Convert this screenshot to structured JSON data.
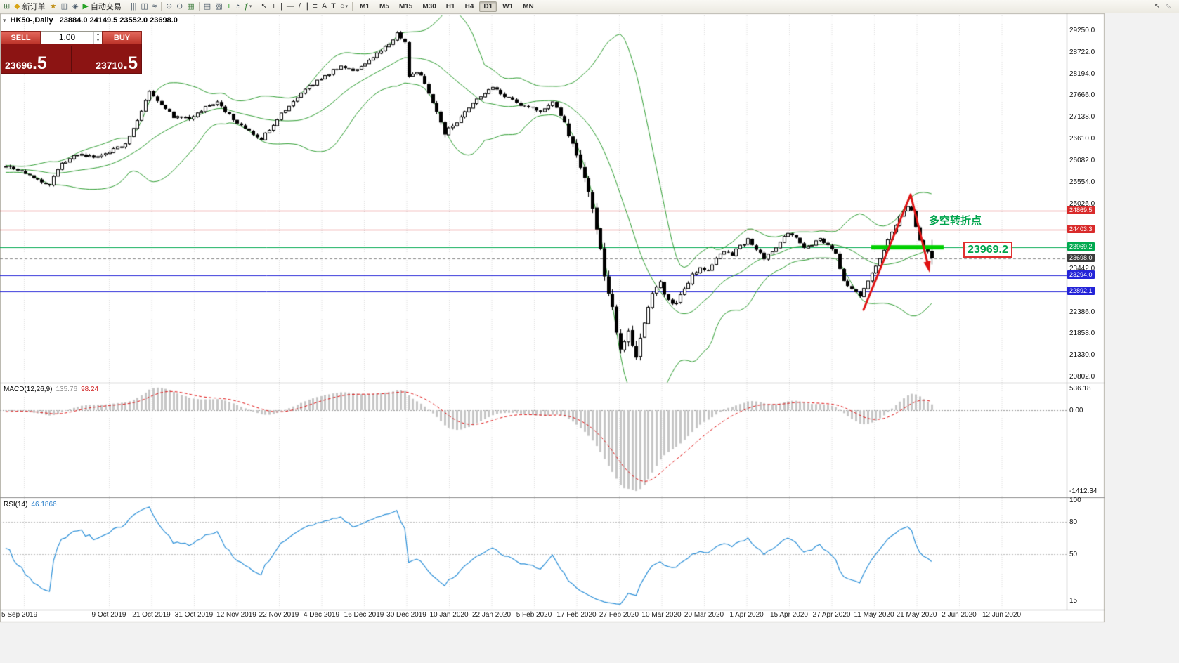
{
  "toolbar": {
    "items": [
      {
        "name": "new-chart-button",
        "glyph": "⊞",
        "color": "#3b6e3b"
      },
      {
        "name": "new-order-button",
        "glyph": "◆",
        "color": "#d8a517",
        "label": "新订单"
      },
      {
        "name": "metaeditor-button",
        "glyph": "★",
        "color": "#c09018"
      },
      {
        "name": "market-watch-button",
        "glyph": "▥",
        "color": "#4a5a6a"
      },
      {
        "name": "data-window-button",
        "glyph": "◈",
        "color": "#4a5a6a"
      },
      {
        "name": "autotrade-button",
        "glyph": "▶",
        "color": "#27a327",
        "label": "自动交易"
      },
      {
        "sep": true
      },
      {
        "name": "bar-chart-button",
        "glyph": "|||",
        "color": "#3f4f5f"
      },
      {
        "name": "candle-chart-button",
        "glyph": "◫",
        "color": "#3f4f5f"
      },
      {
        "name": "line-chart-button",
        "glyph": "≈",
        "color": "#3f4f5f"
      },
      {
        "sep": true
      },
      {
        "name": "zoom-in-button",
        "glyph": "⊕",
        "color": "#3f4f5f"
      },
      {
        "name": "zoom-out-button",
        "glyph": "⊖",
        "color": "#3f4f5f"
      },
      {
        "name": "tile-windows-button",
        "glyph": "▦",
        "color": "#3b7a3b"
      },
      {
        "sep": true
      },
      {
        "name": "arrange-windows-button",
        "glyph": "▤",
        "color": "#3f4f5f"
      },
      {
        "name": "cascade-windows-button",
        "glyph": "▧",
        "color": "#3f4f5f"
      },
      {
        "name": "new-window-button",
        "glyph": "+",
        "color": "#1f9a1f"
      },
      {
        "name": "time-periods-button",
        "glyph": "◔",
        "color": "#3f4f5f"
      },
      {
        "name": "indicators-button",
        "glyph": "ƒ",
        "color": "#2c7a2c",
        "caret": true
      },
      {
        "sep": true
      },
      {
        "name": "cursor-tool-button",
        "glyph": "↖",
        "color": "#333333"
      },
      {
        "name": "crosshair-tool-button",
        "glyph": "+",
        "color": "#333333"
      },
      {
        "name": "vertical-line-tool-button",
        "glyph": "|",
        "color": "#333333"
      },
      {
        "name": "horizontal-line-tool-button",
        "glyph": "—",
        "color": "#333333"
      },
      {
        "name": "trendline-tool-button",
        "glyph": "/",
        "color": "#333333"
      },
      {
        "name": "channel-tool-button",
        "glyph": "∥",
        "color": "#333333"
      },
      {
        "name": "fibonacci-tool-button",
        "glyph": "≡",
        "color": "#333333"
      },
      {
        "name": "text-tool-button",
        "glyph": "A",
        "color": "#333333"
      },
      {
        "name": "label-tool-button",
        "glyph": "T",
        "color": "#333333"
      },
      {
        "name": "shapes-tool-button",
        "glyph": "○",
        "color": "#333333",
        "caret": true
      },
      {
        "sep": true
      }
    ],
    "timeframes": [
      "M1",
      "M5",
      "M15",
      "M30",
      "H1",
      "H4",
      "D1",
      "W1",
      "MN"
    ],
    "active_timeframe": "D1",
    "right_items": [
      {
        "name": "cursor-icon",
        "glyph": "↖",
        "color": "#555555"
      },
      {
        "name": "hand-cursor-icon",
        "glyph": "⇖",
        "color": "#999999"
      }
    ]
  },
  "trade_panel": {
    "sell_label": "SELL",
    "buy_label": "BUY",
    "volume": "1.00",
    "bid": {
      "main": "23696",
      "pip": ".5"
    },
    "ask": {
      "main": "23710",
      "pip": ".5"
    }
  },
  "chart": {
    "symbol": "HK50-,Daily",
    "ohlc": "23884.0 24149.5 23552.0 23698.0"
  },
  "chart_data": {
    "type": "candlestick",
    "symbol": "HK50-",
    "timeframe": "Daily",
    "today": {
      "open": 23884.0,
      "high": 24149.5,
      "low": 23552.0,
      "close": 23698.0
    },
    "current_price": {
      "price": 23698.0,
      "label": "23698.0",
      "color": "#3c3c3c"
    },
    "levels": [
      {
        "price": 24869.5,
        "label": "24869.5",
        "color": "#d92b2b"
      },
      {
        "price": 24403.3,
        "label": "24403.3",
        "color": "#d92b2b"
      },
      {
        "price": 23969.2,
        "label": "23969.2",
        "color": "#00a94f",
        "highlight": true
      },
      {
        "price": 23294.0,
        "label": "23294.0",
        "color": "#2424d8"
      },
      {
        "price": 22892.1,
        "label": "22892.1",
        "color": "#2424d8"
      }
    ],
    "level_label": "23969.2",
    "annotation_text": "多空转折点",
    "annotation_color": "#00a44c",
    "y_ticks": [
      29250,
      28722,
      28194,
      27666,
      27138,
      26610,
      26082,
      25554,
      25026,
      23442,
      22386,
      21858,
      21330,
      20802
    ],
    "bollinger": {
      "period": 20,
      "deviation": 2
    },
    "macd": {
      "name": "MACD(12,26,9)",
      "value": "135.76",
      "signal_value": "98.24",
      "axis_max": "536.18",
      "axis_zero": "0.00",
      "axis_min": "-1412.34"
    },
    "rsi": {
      "name": "RSI(14)",
      "value": "46.1866",
      "axis_top": "100",
      "axis_levels": [
        "80",
        "50"
      ],
      "axis_bottom": "15",
      "levels": [
        80,
        50
      ]
    },
    "price_anchors": [
      [
        0,
        25950
      ],
      [
        4,
        25800
      ],
      [
        8,
        25600
      ],
      [
        11,
        25500
      ],
      [
        14,
        26000
      ],
      [
        18,
        26250
      ],
      [
        22,
        26150
      ],
      [
        26,
        26300
      ],
      [
        30,
        26500
      ],
      [
        33,
        27050
      ],
      [
        36,
        27750
      ],
      [
        39,
        27450
      ],
      [
        42,
        27150
      ],
      [
        46,
        27100
      ],
      [
        50,
        27400
      ],
      [
        53,
        27500
      ],
      [
        57,
        27100
      ],
      [
        61,
        26800
      ],
      [
        64,
        26600
      ],
      [
        68,
        27100
      ],
      [
        72,
        27550
      ],
      [
        76,
        27900
      ],
      [
        80,
        28150
      ],
      [
        84,
        28400
      ],
      [
        87,
        28250
      ],
      [
        90,
        28450
      ],
      [
        93,
        28700
      ],
      [
        96,
        28950
      ],
      [
        98,
        29200
      ],
      [
        100,
        28950
      ],
      [
        101,
        28150
      ],
      [
        104,
        28200
      ],
      [
        107,
        27500
      ],
      [
        110,
        26750
      ],
      [
        113,
        27000
      ],
      [
        116,
        27400
      ],
      [
        119,
        27650
      ],
      [
        122,
        27850
      ],
      [
        126,
        27600
      ],
      [
        130,
        27400
      ],
      [
        134,
        27300
      ],
      [
        137,
        27550
      ],
      [
        140,
        27000
      ],
      [
        142,
        26400
      ],
      [
        144,
        25850
      ],
      [
        146,
        25300
      ],
      [
        148,
        24400
      ],
      [
        150,
        23300
      ],
      [
        152,
        22400
      ],
      [
        154,
        21500
      ],
      [
        156,
        21900
      ],
      [
        158,
        21300
      ],
      [
        160,
        22200
      ],
      [
        162,
        22900
      ],
      [
        164,
        23100
      ],
      [
        166,
        22650
      ],
      [
        168,
        22600
      ],
      [
        170,
        23000
      ],
      [
        172,
        23300
      ],
      [
        174,
        23450
      ],
      [
        176,
        23400
      ],
      [
        178,
        23700
      ],
      [
        180,
        23900
      ],
      [
        182,
        23800
      ],
      [
        184,
        24000
      ],
      [
        186,
        24150
      ],
      [
        188,
        23900
      ],
      [
        190,
        23700
      ],
      [
        192,
        23850
      ],
      [
        194,
        24100
      ],
      [
        196,
        24300
      ],
      [
        198,
        24200
      ],
      [
        200,
        23950
      ],
      [
        202,
        24050
      ],
      [
        204,
        24200
      ],
      [
        206,
        24000
      ],
      [
        208,
        23800
      ],
      [
        210,
        23150
      ],
      [
        212,
        22950
      ],
      [
        214,
        22800
      ],
      [
        216,
        23150
      ],
      [
        218,
        23500
      ],
      [
        220,
        23900
      ],
      [
        222,
        24350
      ],
      [
        224,
        24700
      ],
      [
        226,
        24950
      ],
      [
        227,
        24880
      ],
      [
        228,
        24500
      ],
      [
        229,
        24150
      ],
      [
        230,
        23950
      ],
      [
        231,
        23850
      ],
      [
        232,
        23698
      ]
    ],
    "dates": [
      "5 Sep 2019",
      "9 Oct 2019",
      "21 Oct 2019",
      "31 Oct 2019",
      "12 Nov 2019",
      "22 Nov 2019",
      "4 Dec 2019",
      "16 Dec 2019",
      "30 Dec 2019",
      "10 Jan 2020",
      "22 Jan 2020",
      "5 Feb 2020",
      "17 Feb 2020",
      "27 Feb 2020",
      "10 Mar 2020",
      "20 Mar 2020",
      "1 Apr 2020",
      "15 Apr 2020",
      "27 Apr 2020",
      "11 May 2020",
      "21 May 2020",
      "2 Jun 2020",
      "12 Jun 2020"
    ]
  }
}
